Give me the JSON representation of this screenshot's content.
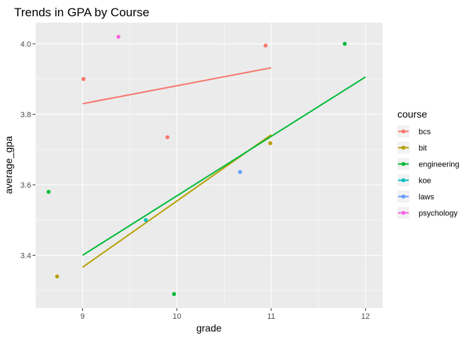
{
  "chart_data": {
    "type": "scatter",
    "title": "Trends in GPA by Course",
    "xlabel": "grade",
    "ylabel": "average_gpa",
    "xlim": [
      8.5,
      12.18
    ],
    "ylim": [
      3.25,
      4.06
    ],
    "x_ticks": [
      9,
      10,
      11,
      12
    ],
    "y_ticks": [
      3.4,
      3.6,
      3.8,
      4.0
    ],
    "x_tick_labels": [
      "9",
      "10",
      "11",
      "12"
    ],
    "y_tick_labels": [
      "3.4",
      "3.6",
      "3.8",
      "4.0"
    ],
    "grid": true,
    "legend": {
      "title": "course",
      "position": "right"
    },
    "series": [
      {
        "name": "bcs",
        "color": "#F8766D",
        "points": [
          [
            9.01,
            3.9
          ],
          [
            9.9,
            3.735
          ],
          [
            10.94,
            3.995
          ]
        ],
        "trend": [
          [
            9.0,
            3.83
          ],
          [
            11.0,
            3.932
          ]
        ]
      },
      {
        "name": "bit",
        "color": "#B79F00",
        "points": [
          [
            8.73,
            3.34
          ],
          [
            10.99,
            3.718
          ]
        ],
        "trend": [
          [
            9.0,
            3.366
          ],
          [
            11.0,
            3.742
          ]
        ]
      },
      {
        "name": "engineering",
        "color": "#00BA38",
        "points": [
          [
            8.64,
            3.58
          ],
          [
            9.97,
            3.29
          ],
          [
            11.78,
            4.0
          ]
        ],
        "trend": [
          [
            9.0,
            3.4
          ],
          [
            12.0,
            3.906
          ]
        ]
      },
      {
        "name": "koe",
        "color": "#00BFC4",
        "points": [
          [
            9.67,
            3.5
          ]
        ],
        "trend": null
      },
      {
        "name": "laws",
        "color": "#619CFF",
        "points": [
          [
            10.67,
            3.636
          ]
        ],
        "trend": null
      },
      {
        "name": "psychology",
        "color": "#F564E3",
        "points": [
          [
            9.38,
            4.02
          ]
        ],
        "trend": null
      }
    ]
  },
  "colors": {
    "panel_background": "#EBEBEB",
    "grid_major": "#FFFFFF",
    "legend_key_background": "#F2F2F2"
  }
}
